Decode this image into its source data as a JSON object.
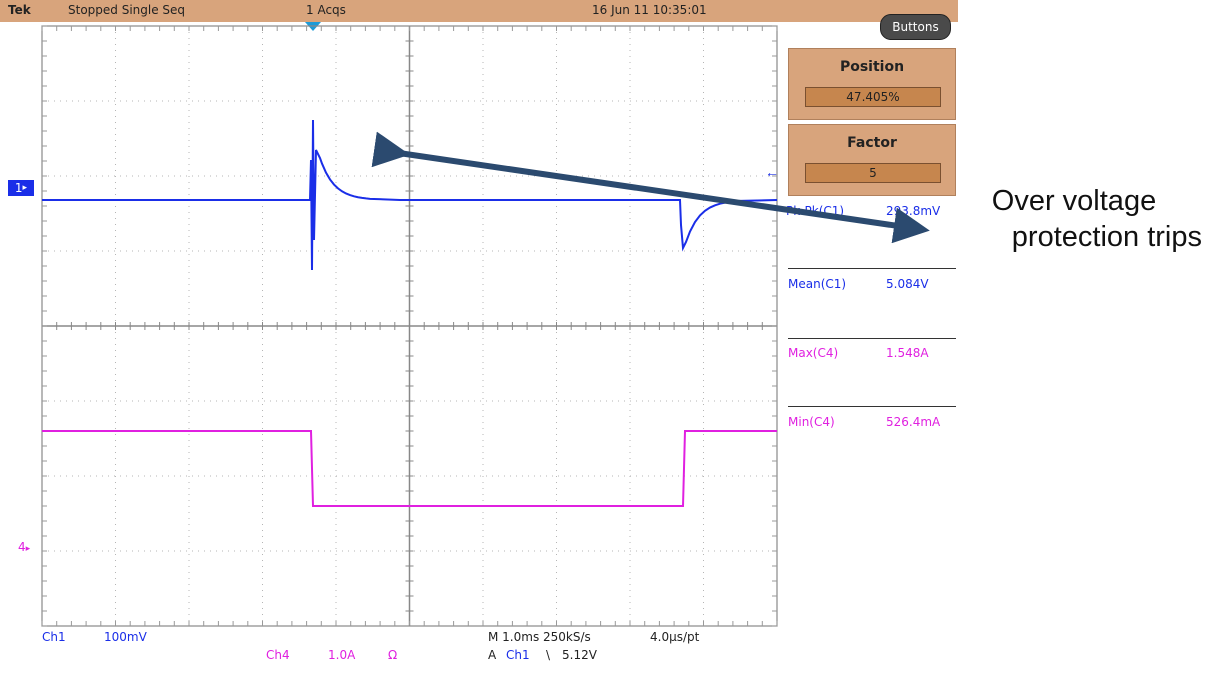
{
  "header": {
    "brand": "Tek",
    "status": "Stopped  Single Seq",
    "acquisitions": "1 Acqs",
    "datetime": "16 Jun 11 10:35:01",
    "buttons_label": "Buttons"
  },
  "panels": {
    "position": {
      "title": "Position",
      "value": "47.405%"
    },
    "factor": {
      "title": "Factor",
      "value": "5"
    }
  },
  "measurements": [
    {
      "label": "Pk-Pk(C1)",
      "value": "293.8mV",
      "color": "#1a2ee8"
    },
    {
      "label": "Mean(C1)",
      "value": "5.084V",
      "color": "#1a2ee8"
    },
    {
      "label": "Max(C4)",
      "value": "1.548A",
      "color": "#e020e0"
    },
    {
      "label": "Min(C4)",
      "value": "526.4mA",
      "color": "#e020e0"
    }
  ],
  "channels": {
    "ch1_marker": "1",
    "ch4_marker": "4",
    "ch1_label": "Ch1",
    "ch1_scale": "100mV",
    "ch4_label": "Ch4",
    "ch4_scale": "1.0A",
    "ch4_impedance": "Ω",
    "ch1_color": "#1a2ee8",
    "ch4_color": "#e020e0"
  },
  "timebase": {
    "line1": "M 1.0ms 250kS/s",
    "per_point": "4.0µs/pt",
    "trigger_prefix": "A",
    "trigger_source": "Ch1",
    "trigger_slope": "\\",
    "trigger_level": "5.12V"
  },
  "annotation": {
    "line1": "Over voltage",
    "line2": "protection trips"
  },
  "colors": {
    "accent_panel": "#d8a47c",
    "grid": "#8a8a8a",
    "arrow": "#2b4a6f"
  }
}
